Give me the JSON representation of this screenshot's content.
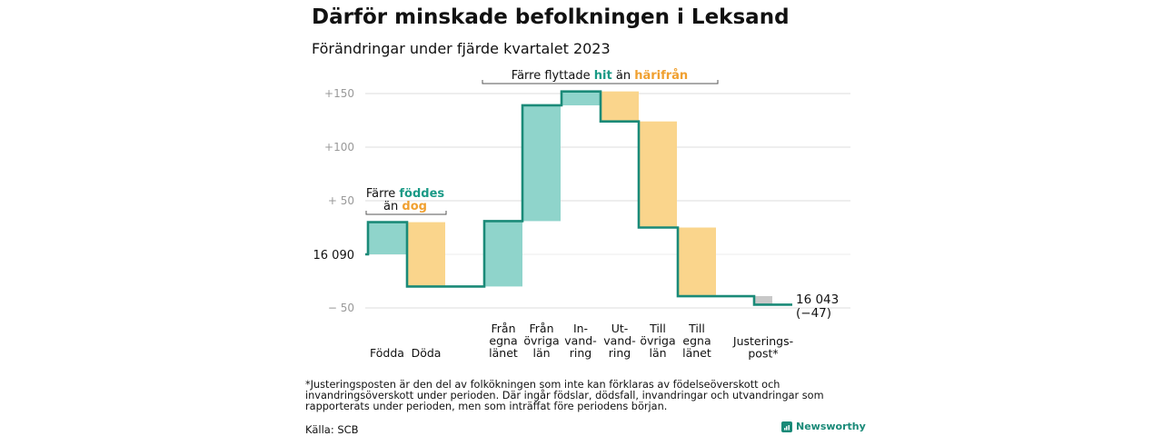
{
  "title": "Därför minskade befolkningen i Leksand",
  "subtitle": "Förändringar under fjärde kvartalet 2023",
  "footnote": "*Justeringsposten är den del av folkökningen som inte kan förklaras av födelseöverskott och invandringsöverskott under perioden. Där ingår födslar, dödsfall, invandringar och utvandringar som rapporterats under perioden, men som inträffat före periodens början.",
  "source": "Källa: SCB",
  "brand": "Newsworthy",
  "colors": {
    "positive_fill": "#8fd4cb",
    "negative_fill": "#fad58c",
    "adjustment_fill": "#c8c8c8",
    "line": "#1a8a78",
    "teal_text": "#1a9a86",
    "orange_text": "#f0a030",
    "grid": "#dddddd",
    "tick_text": "#999999"
  },
  "chart_data": {
    "type": "waterfall",
    "baseline": 16090,
    "start_label": "16  090",
    "end_value": 16043,
    "end_label": "16 043",
    "end_change_label": "(−47)",
    "ytick_labels": [
      "+150",
      "+100",
      "+  50",
      "−  50"
    ],
    "ytick_values": [
      150,
      100,
      50,
      -50
    ],
    "ylim": [
      -55,
      160
    ],
    "steps": [
      {
        "label_lines": [
          "Födda"
        ],
        "start": 0,
        "end": 30,
        "kind": "positive"
      },
      {
        "label_lines": [
          "Döda"
        ],
        "start": 30,
        "end": -30,
        "kind": "negative"
      },
      {
        "label_lines": [
          "Från",
          "egna",
          "länet"
        ],
        "start": -30,
        "end": 31,
        "kind": "positive"
      },
      {
        "label_lines": [
          "Från",
          "övriga",
          "län"
        ],
        "start": 31,
        "end": 139,
        "kind": "positive"
      },
      {
        "label_lines": [
          "In-",
          "vand-",
          "ring"
        ],
        "start": 139,
        "end": 152,
        "kind": "positive"
      },
      {
        "label_lines": [
          "Ut-",
          "vand-",
          "ring"
        ],
        "start": 152,
        "end": 124,
        "kind": "negative"
      },
      {
        "label_lines": [
          "Till",
          "övriga",
          "län"
        ],
        "start": 124,
        "end": 25,
        "kind": "negative"
      },
      {
        "label_lines": [
          "Till",
          "egna",
          "länet"
        ],
        "start": 25,
        "end": -39,
        "kind": "negative"
      },
      {
        "label_lines": [
          "Justerings-",
          "post*"
        ],
        "start": -39,
        "end": -47,
        "kind": "adjustment"
      }
    ],
    "annotations": [
      {
        "line1": "Färre",
        "highlight1": "föddes",
        "line2": "än",
        "highlight2": "dog"
      },
      {
        "line1": "Färre flyttade",
        "highlight1": "hit",
        "line2": "än",
        "highlight2": "härifrån"
      }
    ]
  }
}
